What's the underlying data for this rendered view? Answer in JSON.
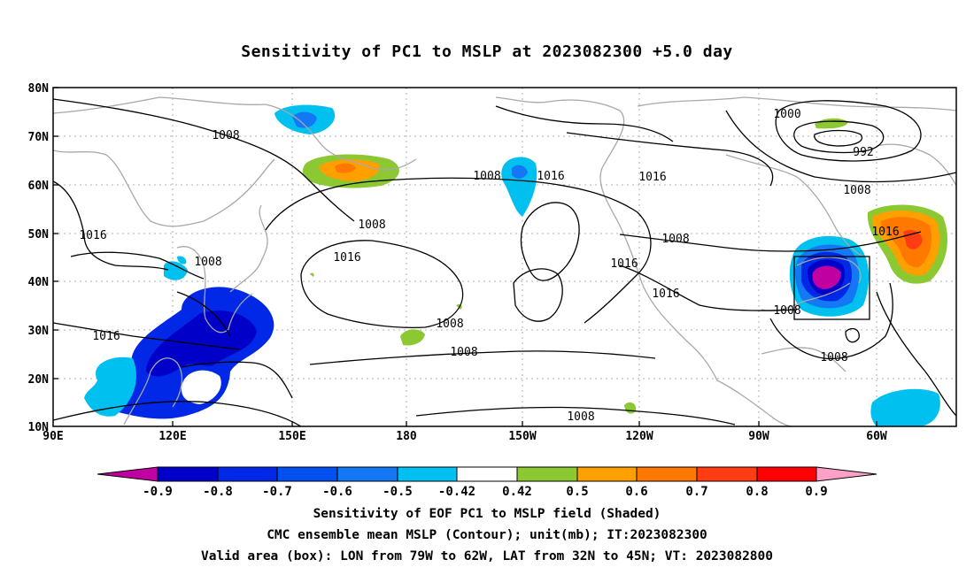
{
  "title": "Sensitivity of PC1 to MSLP at 2023082300 +5.0 day",
  "map": {
    "lat_labels": [
      "80N",
      "70N",
      "60N",
      "50N",
      "40N",
      "30N",
      "20N",
      "10N"
    ],
    "lon_labels": [
      "90E",
      "120E",
      "150E",
      "180",
      "150W",
      "120W",
      "90W",
      "60W"
    ],
    "contour_labels": [
      "1008",
      "1008",
      "1008",
      "1016",
      "1016",
      "1008",
      "1016",
      "1016",
      "1008",
      "1008",
      "1016",
      "1008",
      "1016",
      "1016",
      "1008",
      "1000",
      "992",
      "1008",
      "1016",
      "1008",
      "1008"
    ],
    "valid_box": {
      "lon_min": "79W",
      "lon_max": "62W",
      "lat_min": "32N",
      "lat_max": "45N"
    }
  },
  "colorbar": {
    "labels": [
      "-0.9",
      "-0.8",
      "-0.7",
      "-0.6",
      "-0.5",
      "-0.42",
      "0.42",
      "0.5",
      "0.6",
      "0.7",
      "0.8",
      "0.9"
    ],
    "colors": [
      "#c000a0",
      "#0000c8",
      "#0028e6",
      "#0050f0",
      "#1478f5",
      "#00c0f0",
      "#ffffff",
      "#8cc832",
      "#ffa000",
      "#ff7800",
      "#ff3c14",
      "#ff0000",
      "#ffa0c8"
    ]
  },
  "captions": {
    "line1": "Sensitivity of EOF PC1 to MSLP field (Shaded)",
    "line2": "CMC ensemble mean MSLP (Contour); unit(mb); IT:2023082300",
    "line3": "Valid area (box): LON from 79W to 62W, LAT from 32N to 45N; VT: 2023082800"
  }
}
